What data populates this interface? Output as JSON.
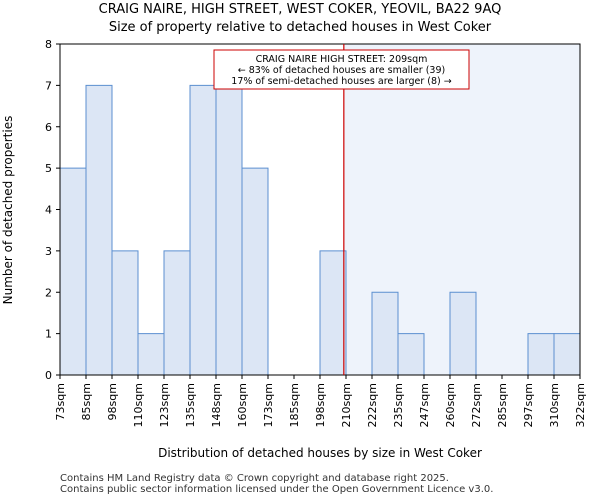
{
  "chart_data": {
    "type": "histogram",
    "title": "CRAIG NAIRE, HIGH STREET, WEST COKER, YEOVIL, BA22 9AQ",
    "subtitle": "Size of property relative to detached houses in West Coker",
    "xlabel": "Distribution of detached houses by size in West Coker",
    "ylabel": "Number of detached properties",
    "categories": [
      "73sqm",
      "85sqm",
      "98sqm",
      "110sqm",
      "123sqm",
      "135sqm",
      "148sqm",
      "160sqm",
      "173sqm",
      "185sqm",
      "198sqm",
      "210sqm",
      "222sqm",
      "235sqm",
      "247sqm",
      "260sqm",
      "272sqm",
      "285sqm",
      "297sqm",
      "310sqm",
      "322sqm"
    ],
    "values": [
      5,
      7,
      3,
      1,
      3,
      7,
      7,
      5,
      0,
      0,
      3,
      0,
      2,
      1,
      0,
      2,
      0,
      0,
      1,
      1
    ],
    "ylim": [
      0,
      8
    ],
    "yticks": [
      0,
      1,
      2,
      3,
      4,
      5,
      6,
      7,
      8
    ],
    "marker_value": 209,
    "marker_color": "#cc0000",
    "bar_color": "#dce6f5",
    "bar_edge_color": "#5b8fd0",
    "shade_color": "#eef3fb",
    "annotation": [
      "CRAIG NAIRE HIGH STREET: 209sqm",
      "← 83% of detached houses are smaller (39)",
      "17% of semi-detached houses are larger (8) →"
    ]
  },
  "footer": {
    "line1": "Contains HM Land Registry data © Crown copyright and database right 2025.",
    "line2": "Contains public sector information licensed under the Open Government Licence v3.0."
  }
}
